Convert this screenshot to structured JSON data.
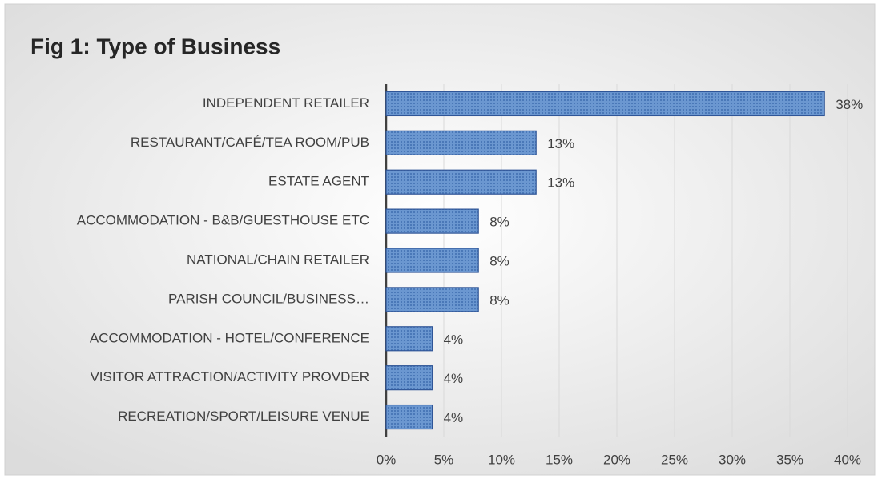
{
  "chart_data": {
    "type": "bar",
    "orientation": "horizontal",
    "title": "Fig 1: Type of Business",
    "categories": [
      "INDEPENDENT RETAILER",
      "RESTAURANT/CAFÉ/TEA ROOM/PUB",
      "ESTATE AGENT",
      "ACCOMMODATION - B&B/GUESTHOUSE ETC",
      "NATIONAL/CHAIN RETAILER",
      "PARISH COUNCIL/BUSINESS…",
      "ACCOMMODATION - HOTEL/CONFERENCE",
      "VISITOR ATTRACTION/ACTIVITY PROVDER",
      "RECREATION/SPORT/LEISURE VENUE"
    ],
    "values": [
      38,
      13,
      13,
      8,
      8,
      8,
      4,
      4,
      4
    ],
    "value_labels": [
      "38%",
      "13%",
      "13%",
      "8%",
      "8%",
      "8%",
      "4%",
      "4%",
      "4%"
    ],
    "color": "#5b8bc9",
    "xlim": [
      0,
      40
    ],
    "xticks": [
      {
        "value": 0,
        "label": "0%"
      },
      {
        "value": 5,
        "label": "5%"
      },
      {
        "value": 10,
        "label": "10%"
      },
      {
        "value": 15,
        "label": "15%"
      },
      {
        "value": 20,
        "label": "20%"
      },
      {
        "value": 25,
        "label": "25%"
      },
      {
        "value": 30,
        "label": "30%"
      },
      {
        "value": 35,
        "label": "35%"
      },
      {
        "value": 40,
        "label": "40%"
      }
    ],
    "grid": true
  }
}
